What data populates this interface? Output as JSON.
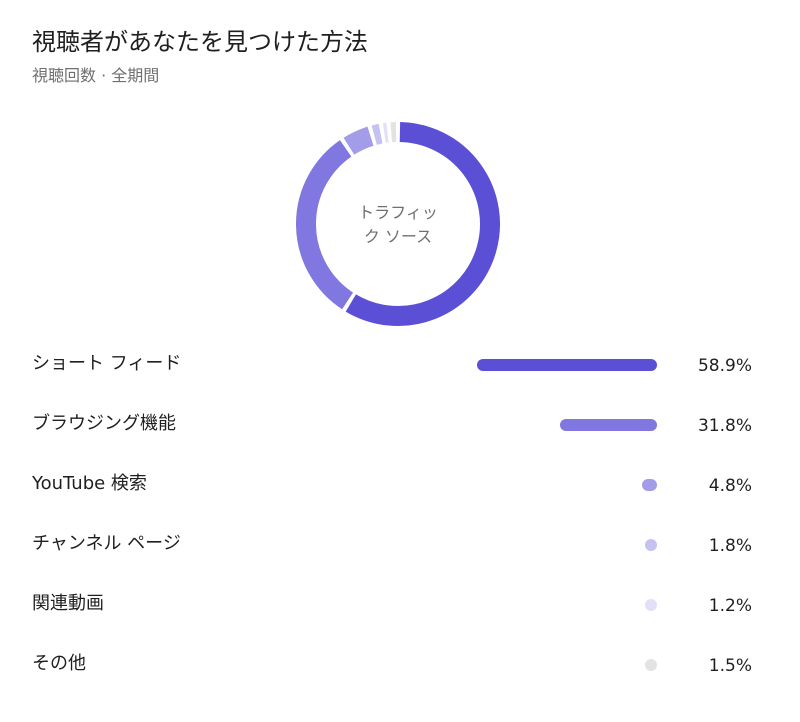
{
  "header": {
    "title": "視聴者があなたを見つけた方法",
    "subtitle": "視聴回数 · 全期間"
  },
  "donut": {
    "center_label_line1": "トラフィッ",
    "center_label_line2": "ク ソース"
  },
  "chart_data": {
    "type": "pie",
    "style": "donut",
    "title": "視聴者があなたを見つけた方法",
    "subtitle": "視聴回数 · 全期間",
    "center_label": "トラフィック ソース",
    "categories": [
      "ショート フィード",
      "ブラウジング機能",
      "YouTube 検索",
      "チャンネル ページ",
      "関連動画",
      "その他"
    ],
    "values": [
      58.9,
      31.8,
      4.8,
      1.8,
      1.2,
      1.5
    ],
    "value_labels": [
      "58.9%",
      "31.8%",
      "4.8%",
      "1.8%",
      "1.2%",
      "1.5%"
    ],
    "colors": [
      "#5b4fd6",
      "#8077e0",
      "#a39de9",
      "#c5c1f1",
      "#e2e0f8",
      "#e3e3e3"
    ],
    "unit": "%"
  }
}
